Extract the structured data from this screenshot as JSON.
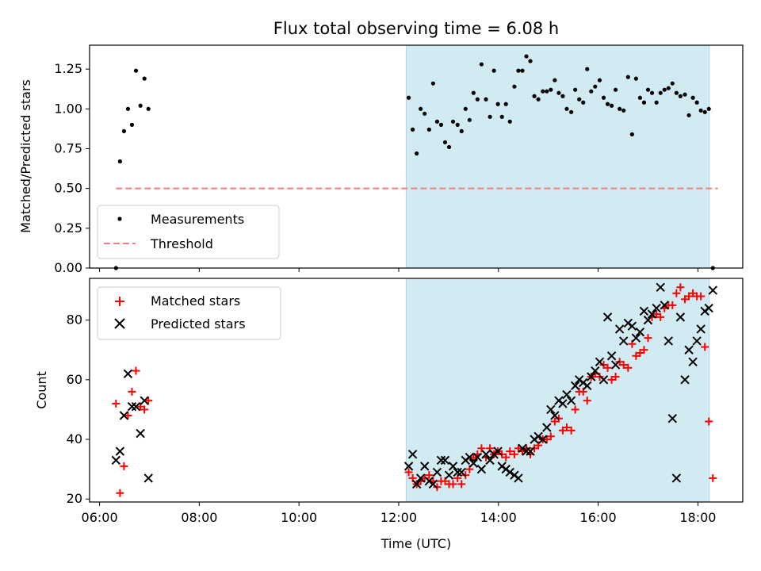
{
  "title": "Flux total observing time = 6.08 h",
  "xlabel": "Time (UTC)",
  "x_ticks": [
    "06:00",
    "08:00",
    "10:00",
    "12:00",
    "14:00",
    "16:00",
    "18:00"
  ],
  "top_ylabel": "Matched/Predicted stars",
  "bottom_ylabel": "Count",
  "top_y_ticks": [
    "0.00",
    "0.25",
    "0.50",
    "0.75",
    "1.00",
    "1.25"
  ],
  "bottom_y_ticks": [
    "20",
    "40",
    "60",
    "80"
  ],
  "legend_top": {
    "measurements": "Measurements",
    "threshold": "Threshold"
  },
  "legend_bottom": {
    "matched": "Matched stars",
    "predicted": "Predicted stars"
  },
  "colors": {
    "shade": "#add8e6",
    "threshold": "#f08080",
    "matched": "#ff0000",
    "predicted": "#000000",
    "measurements": "#000000"
  },
  "chart_data": [
    {
      "type": "scatter",
      "panel": "top",
      "x_unit": "hours UTC",
      "xlim": [
        5.8,
        18.9
      ],
      "ylim": [
        0,
        1.4
      ],
      "shaded_span": [
        12.15,
        18.23
      ],
      "threshold": {
        "y": 0.5,
        "x_range": [
          6.33,
          18.4
        ]
      },
      "series": [
        {
          "name": "Measurements",
          "x": [
            6.33,
            6.41,
            6.49,
            6.57,
            6.65,
            6.73,
            6.82,
            6.9,
            6.98,
            12.2,
            12.28,
            12.36,
            12.44,
            12.52,
            12.61,
            12.69,
            12.77,
            12.85,
            12.93,
            13.01,
            13.09,
            13.18,
            13.26,
            13.34,
            13.42,
            13.5,
            13.58,
            13.66,
            13.75,
            13.83,
            13.91,
            13.99,
            14.07,
            14.15,
            14.23,
            14.32,
            14.4,
            14.48,
            14.56,
            14.64,
            14.72,
            14.8,
            14.89,
            14.97,
            15.05,
            15.13,
            15.21,
            15.29,
            15.37,
            15.46,
            15.54,
            15.62,
            15.7,
            15.78,
            15.86,
            15.94,
            16.03,
            16.11,
            16.19,
            16.27,
            16.35,
            16.43,
            16.51,
            16.6,
            16.68,
            16.76,
            16.84,
            16.92,
            17.0,
            17.08,
            17.17,
            17.25,
            17.33,
            17.41,
            17.49,
            17.57,
            17.65,
            17.74,
            17.82,
            17.9,
            17.98,
            18.06,
            18.14,
            18.22,
            18.3
          ],
          "y": [
            0.0,
            0.67,
            0.86,
            1.0,
            0.9,
            1.24,
            1.02,
            1.19,
            1.0,
            1.07,
            0.87,
            0.72,
            1.0,
            0.97,
            0.87,
            1.16,
            0.92,
            0.9,
            0.79,
            0.76,
            0.92,
            0.9,
            0.86,
            1.0,
            0.93,
            1.1,
            1.06,
            1.28,
            1.06,
            0.95,
            1.24,
            1.03,
            0.95,
            1.03,
            0.92,
            1.14,
            1.24,
            1.24,
            1.33,
            1.3,
            1.08,
            1.06,
            1.11,
            1.11,
            1.12,
            1.18,
            1.1,
            1.08,
            1.0,
            0.98,
            1.12,
            1.06,
            1.04,
            1.25,
            1.11,
            1.14,
            1.18,
            1.07,
            1.03,
            1.02,
            1.12,
            1.0,
            0.99,
            1.2,
            0.84,
            1.19,
            1.07,
            1.04,
            1.12,
            1.1,
            1.04,
            1.1,
            1.12,
            1.13,
            1.16,
            1.1,
            1.08,
            1.09,
            0.96,
            1.07,
            1.04,
            0.99,
            0.98,
            1.0,
            0.0
          ]
        }
      ]
    },
    {
      "type": "scatter",
      "panel": "bottom",
      "x_unit": "hours UTC",
      "xlim": [
        5.8,
        18.9
      ],
      "ylim": [
        19,
        94
      ],
      "shaded_span": [
        12.15,
        18.23
      ],
      "series": [
        {
          "name": "Matched stars",
          "x": [
            6.33,
            6.41,
            6.49,
            6.57,
            6.65,
            6.73,
            6.82,
            6.9,
            6.98,
            12.2,
            12.28,
            12.36,
            12.44,
            12.52,
            12.61,
            12.69,
            12.77,
            12.85,
            12.93,
            13.01,
            13.09,
            13.18,
            13.26,
            13.34,
            13.42,
            13.5,
            13.58,
            13.66,
            13.75,
            13.83,
            13.91,
            13.99,
            14.07,
            14.15,
            14.23,
            14.32,
            14.4,
            14.48,
            14.56,
            14.64,
            14.72,
            14.8,
            14.89,
            14.97,
            15.05,
            15.13,
            15.21,
            15.29,
            15.37,
            15.46,
            15.54,
            15.62,
            15.7,
            15.78,
            15.86,
            15.94,
            16.03,
            16.11,
            16.19,
            16.27,
            16.35,
            16.43,
            16.51,
            16.6,
            16.68,
            16.76,
            16.84,
            16.92,
            17.0,
            17.08,
            17.17,
            17.25,
            17.33,
            17.41,
            17.49,
            17.57,
            17.65,
            17.74,
            17.82,
            17.9,
            17.98,
            18.06,
            18.14,
            18.22,
            18.3
          ],
          "y": [
            52,
            22,
            31,
            48,
            56,
            63,
            51,
            50,
            53,
            29,
            27,
            25,
            26,
            27,
            28,
            26,
            24,
            26,
            26,
            25,
            25,
            27,
            25,
            28,
            30,
            34,
            35,
            37,
            34,
            37,
            35,
            36,
            35,
            34,
            36,
            35,
            37,
            36,
            37,
            35,
            37,
            38,
            40,
            40,
            41,
            46,
            47,
            43,
            44,
            43,
            50,
            56,
            56,
            53,
            61,
            62,
            61,
            65,
            64,
            60,
            61,
            66,
            65,
            64,
            72,
            68,
            69,
            70,
            74,
            81,
            82,
            81,
            84,
            85,
            85,
            89,
            91,
            87,
            88,
            89,
            88,
            88,
            71,
            46,
            27
          ]
        },
        {
          "name": "Predicted stars",
          "x": [
            6.33,
            6.41,
            6.49,
            6.57,
            6.65,
            6.73,
            6.82,
            6.9,
            6.98,
            12.2,
            12.28,
            12.36,
            12.44,
            12.52,
            12.61,
            12.69,
            12.77,
            12.85,
            12.93,
            13.01,
            13.09,
            13.18,
            13.26,
            13.34,
            13.42,
            13.5,
            13.58,
            13.66,
            13.75,
            13.83,
            13.91,
            13.99,
            14.07,
            14.15,
            14.23,
            14.32,
            14.4,
            14.48,
            14.56,
            14.64,
            14.72,
            14.8,
            14.89,
            14.97,
            15.05,
            15.13,
            15.21,
            15.29,
            15.37,
            15.46,
            15.54,
            15.62,
            15.7,
            15.78,
            15.86,
            15.94,
            16.03,
            16.11,
            16.19,
            16.27,
            16.35,
            16.43,
            16.51,
            16.6,
            16.68,
            16.76,
            16.84,
            16.92,
            17.0,
            17.08,
            17.17,
            17.25,
            17.33,
            17.41,
            17.49,
            17.57,
            17.65,
            17.74,
            17.82,
            17.9,
            17.98,
            18.06,
            18.14,
            18.22,
            18.3
          ],
          "y": [
            33,
            36,
            48,
            62,
            51,
            51,
            42,
            53,
            27,
            31,
            35,
            25,
            27,
            31,
            26,
            25,
            29,
            33,
            33,
            28,
            31,
            29,
            29,
            33,
            34,
            32,
            34,
            30,
            35,
            33,
            35,
            36,
            31,
            30,
            29,
            28,
            27,
            37,
            36,
            36,
            40,
            41,
            40,
            44,
            50,
            48,
            53,
            52,
            55,
            53,
            58,
            60,
            59,
            58,
            61,
            63,
            66,
            60,
            81,
            68,
            65,
            77,
            73,
            79,
            78,
            74,
            76,
            83,
            80,
            82,
            84,
            91,
            85,
            73,
            47,
            27,
            81,
            60,
            70,
            66,
            73,
            77,
            83,
            84,
            90
          ],
          "note_x_order": "paired by index with x"
        }
      ]
    }
  ]
}
